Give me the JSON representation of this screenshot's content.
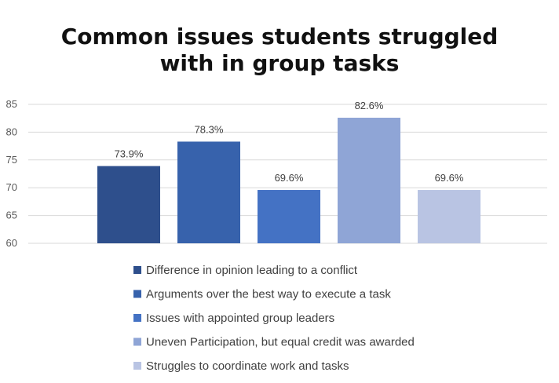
{
  "chart_data": {
    "type": "bar",
    "title_lines": [
      "Common issues students struggled",
      "with in group tasks"
    ],
    "ylim": [
      60,
      85
    ],
    "yticks": [
      60,
      65,
      70,
      75,
      80,
      85
    ],
    "grid": true,
    "legend_position": "bottom",
    "series": [
      {
        "name": "Difference in opinion leading to a conflict",
        "value": 73.9,
        "label": "73.9%",
        "color": "#2E4F8C"
      },
      {
        "name": "Arguments over the best way to execute a task",
        "value": 78.3,
        "label": "78.3%",
        "color": "#3762AC"
      },
      {
        "name": "Issues with appointed group leaders",
        "value": 69.6,
        "label": "69.6%",
        "color": "#4472C4"
      },
      {
        "name": "Uneven Participation, but equal credit was awarded",
        "value": 82.6,
        "label": "82.6%",
        "color": "#8FA5D6"
      },
      {
        "name": "Struggles to coordinate work and tasks",
        "value": 69.6,
        "label": "69.6%",
        "color": "#B9C4E3"
      }
    ]
  }
}
